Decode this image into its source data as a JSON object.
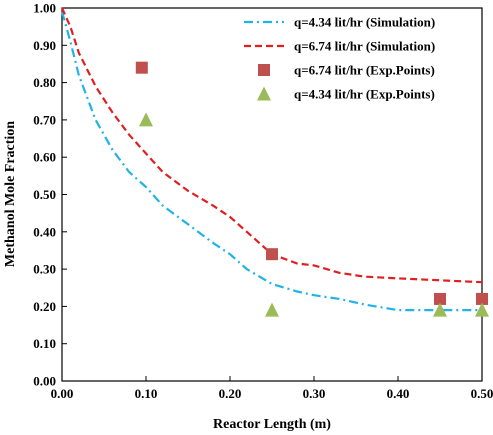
{
  "chart_data": {
    "type": "line",
    "xlabel": "Reactor Length (m)",
    "ylabel": "Methanol Mole Fraction",
    "xlim": [
      0,
      0.5
    ],
    "ylim": [
      0,
      1.0
    ],
    "x_ticks": [
      "0.00",
      "0.10",
      "0.20",
      "0.30",
      "0.40",
      "0.50"
    ],
    "y_ticks": [
      "0.00",
      "0.10",
      "0.20",
      "0.30",
      "0.40",
      "0.50",
      "0.60",
      "0.70",
      "0.80",
      "0.90",
      "1.00"
    ],
    "grid": false,
    "legend_position": "top-right",
    "series": [
      {
        "name": "q=4.34 lit/hr (Simulation)",
        "kind": "line",
        "style": "dash-dot",
        "color": "#1fb3e6",
        "x": [
          0.0,
          0.01,
          0.02,
          0.04,
          0.06,
          0.08,
          0.1,
          0.12,
          0.15,
          0.18,
          0.2,
          0.22,
          0.25,
          0.28,
          0.3,
          0.33,
          0.36,
          0.4,
          0.45,
          0.5
        ],
        "y": [
          0.99,
          0.91,
          0.82,
          0.7,
          0.62,
          0.56,
          0.52,
          0.47,
          0.42,
          0.37,
          0.34,
          0.3,
          0.26,
          0.24,
          0.23,
          0.22,
          0.205,
          0.19,
          0.19,
          0.19
        ]
      },
      {
        "name": "q=6.74 lit/hr (Simulation)",
        "kind": "line",
        "style": "dashed",
        "color": "#e02020",
        "x": [
          0.0,
          0.01,
          0.02,
          0.04,
          0.06,
          0.08,
          0.1,
          0.12,
          0.15,
          0.18,
          0.2,
          0.22,
          0.25,
          0.28,
          0.3,
          0.33,
          0.36,
          0.4,
          0.45,
          0.5
        ],
        "y": [
          1.0,
          0.95,
          0.88,
          0.79,
          0.72,
          0.66,
          0.61,
          0.56,
          0.51,
          0.47,
          0.44,
          0.4,
          0.34,
          0.315,
          0.31,
          0.29,
          0.28,
          0.275,
          0.27,
          0.265
        ]
      },
      {
        "name": "q=6.74 lit/hr (Exp.Points)",
        "kind": "marker",
        "marker": "square",
        "color": "#c0504d",
        "x": [
          0.095,
          0.25,
          0.45,
          0.5
        ],
        "y": [
          0.84,
          0.34,
          0.22,
          0.22
        ]
      },
      {
        "name": "q=4.34 lit/hr (Exp.Points)",
        "kind": "marker",
        "marker": "triangle",
        "color": "#9bbb59",
        "x": [
          0.1,
          0.25,
          0.45,
          0.5
        ],
        "y": [
          0.7,
          0.19,
          0.19,
          0.19
        ]
      }
    ]
  }
}
